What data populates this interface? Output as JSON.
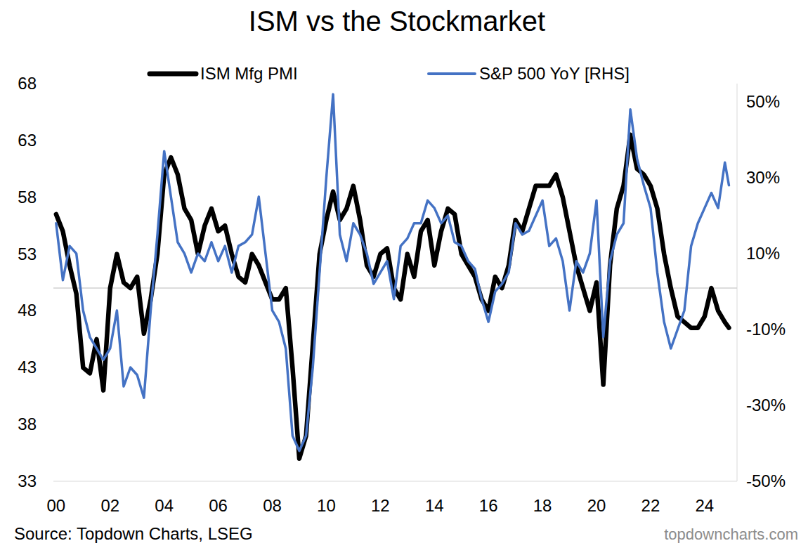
{
  "chart_data": {
    "type": "line",
    "title": "ISM vs the Stockmarket",
    "source": "Source: Topdown Charts, LSEG",
    "credit": "topdowncharts.com",
    "legend": "top",
    "grid": false,
    "hline": 50,
    "x": [
      2000,
      2000.25,
      2000.5,
      2000.75,
      2001,
      2001.25,
      2001.5,
      2001.75,
      2002,
      2002.25,
      2002.5,
      2002.75,
      2003,
      2003.25,
      2003.5,
      2003.75,
      2004,
      2004.25,
      2004.5,
      2004.75,
      2005,
      2005.25,
      2005.5,
      2005.75,
      2006,
      2006.25,
      2006.5,
      2006.75,
      2007,
      2007.25,
      2007.5,
      2007.75,
      2008,
      2008.25,
      2008.5,
      2008.75,
      2009,
      2009.25,
      2009.5,
      2009.75,
      2010,
      2010.25,
      2010.5,
      2010.75,
      2011,
      2011.25,
      2011.5,
      2011.75,
      2012,
      2012.25,
      2012.5,
      2012.75,
      2013,
      2013.25,
      2013.5,
      2013.75,
      2014,
      2014.25,
      2014.5,
      2014.75,
      2015,
      2015.25,
      2015.5,
      2015.75,
      2016,
      2016.25,
      2016.5,
      2016.75,
      2017,
      2017.25,
      2017.5,
      2017.75,
      2018,
      2018.25,
      2018.5,
      2018.75,
      2019,
      2019.25,
      2019.5,
      2019.75,
      2020,
      2020.25,
      2020.5,
      2020.75,
      2021,
      2021.25,
      2021.5,
      2021.75,
      2022,
      2022.25,
      2022.5,
      2022.75,
      2023,
      2023.25,
      2023.5,
      2023.75,
      2024,
      2024.25,
      2024.5,
      2024.75,
      2024.9
    ],
    "series": [
      {
        "name": "ISM Mfg PMI",
        "color": "#000000",
        "axis": "y",
        "values": [
          56.5,
          55,
          52,
          49.5,
          43,
          42.5,
          45.5,
          41,
          50,
          53,
          50.5,
          50,
          51,
          46,
          49,
          53,
          60,
          61.5,
          60,
          57,
          56,
          53,
          55.5,
          57,
          55,
          55.5,
          53,
          51,
          50.5,
          53,
          52,
          50.5,
          49,
          49,
          50,
          43,
          35,
          37,
          45,
          53,
          56,
          58.5,
          56,
          57,
          59,
          56,
          52,
          51,
          53,
          53.5,
          50,
          49,
          53,
          51,
          55,
          56,
          52,
          55,
          57,
          56.5,
          53,
          52,
          51,
          49,
          48,
          51,
          50,
          52,
          56,
          55,
          57,
          59,
          59,
          59,
          60,
          58,
          55,
          52,
          50,
          48,
          50.5,
          41.5,
          52,
          57,
          59,
          63.5,
          60.5,
          60,
          59,
          57,
          53,
          50,
          47.5,
          47,
          46.5,
          46.5,
          47.5,
          50,
          48,
          47,
          46.5
        ]
      },
      {
        "name": "S&P 500 YoY [RHS]",
        "color": "#4472c4",
        "axis": "y2",
        "values": [
          18,
          3,
          12,
          10,
          -5,
          -12,
          -15,
          -18,
          -15,
          -5,
          -25,
          -20,
          -22,
          -28,
          -5,
          15,
          37,
          25,
          13,
          10,
          5,
          10,
          8,
          13,
          8,
          12,
          5,
          12,
          13,
          15,
          25,
          10,
          -5,
          -8,
          -15,
          -38,
          -42,
          -38,
          -20,
          5,
          30,
          52,
          15,
          8,
          18,
          15,
          10,
          2,
          5,
          8,
          -2,
          12,
          14,
          18,
          18,
          24,
          22,
          18,
          20,
          13,
          12,
          8,
          6,
          -2,
          -8,
          0,
          2,
          5,
          18,
          15,
          16,
          20,
          24,
          12,
          14,
          8,
          -5,
          8,
          5,
          10,
          24,
          -12,
          8,
          15,
          18,
          48,
          35,
          28,
          22,
          5,
          -8,
          -15,
          -10,
          -5,
          12,
          18,
          22,
          26,
          22,
          34,
          28
        ]
      }
    ],
    "xlim": [
      1999.9,
      2025.2
    ],
    "xticks": [
      {
        "value": 2000,
        "label": "00"
      },
      {
        "value": 2002,
        "label": "02"
      },
      {
        "value": 2004,
        "label": "04"
      },
      {
        "value": 2006,
        "label": "06"
      },
      {
        "value": 2008,
        "label": "08"
      },
      {
        "value": 2010,
        "label": "10"
      },
      {
        "value": 2012,
        "label": "12"
      },
      {
        "value": 2014,
        "label": "14"
      },
      {
        "value": 2016,
        "label": "16"
      },
      {
        "value": 2018,
        "label": "18"
      },
      {
        "value": 2020,
        "label": "20"
      },
      {
        "value": 2022,
        "label": "22"
      },
      {
        "value": 2024,
        "label": "24"
      }
    ],
    "ylim": [
      33,
      68
    ],
    "yticks": [
      33,
      38,
      43,
      48,
      53,
      58,
      63,
      68
    ],
    "y2lim": [
      -50,
      54.8
    ],
    "y2ticks": [
      {
        "value": -50,
        "label": "-50%"
      },
      {
        "value": -30,
        "label": "-30%"
      },
      {
        "value": -10,
        "label": "-10%"
      },
      {
        "value": 10,
        "label": "10%"
      },
      {
        "value": 30,
        "label": "30%"
      },
      {
        "value": 50,
        "label": "50%"
      }
    ]
  }
}
